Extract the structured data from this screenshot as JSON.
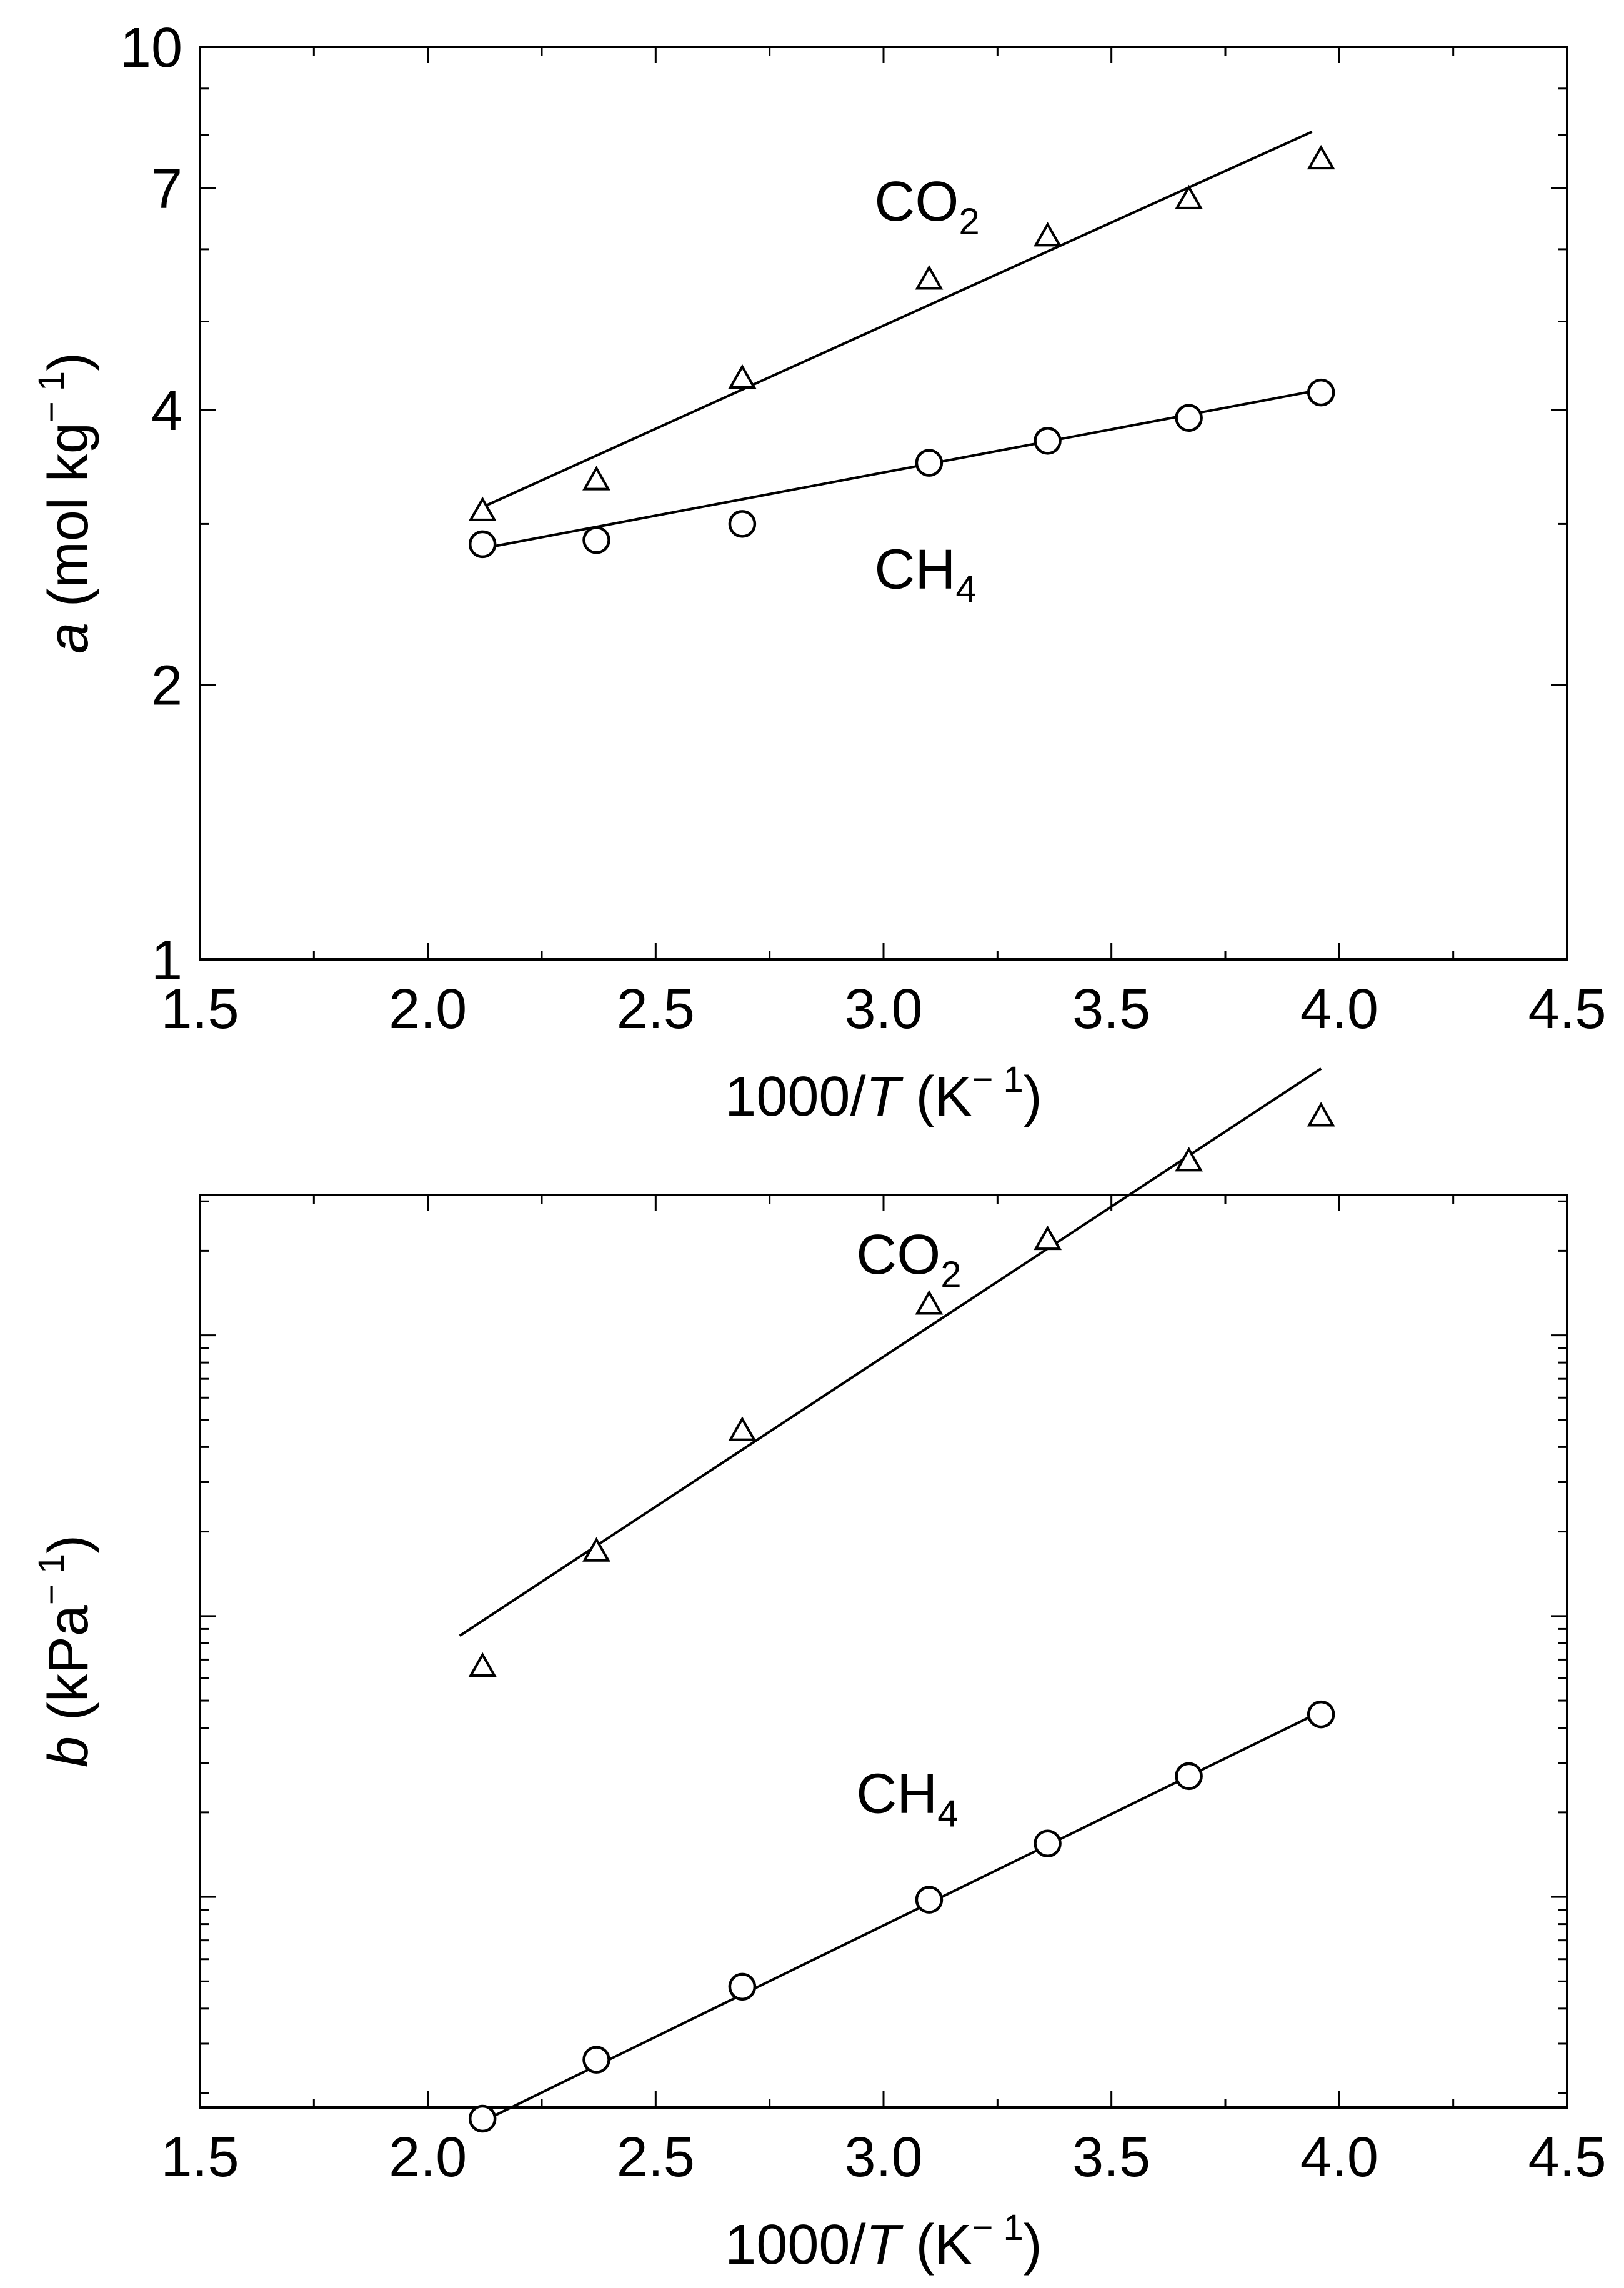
{
  "chart_data": [
    {
      "type": "scatter",
      "panel": "top",
      "yscale": "log",
      "xlabel_parts": {
        "prefix": "1000/",
        "var": "T",
        "unit_open": " (K",
        "unit_sup": "− 1",
        "unit_close": ")"
      },
      "ylabel_parts": {
        "var": "a",
        "unit_open": " (mol kg",
        "unit_sup": "− 1",
        "unit_close": ")"
      },
      "xlim": [
        1.5,
        4.5
      ],
      "ylim": [
        1,
        10
      ],
      "xticks": [
        1.5,
        2.0,
        2.5,
        3.0,
        3.5,
        4.0,
        4.5
      ],
      "xtick_labels": [
        "1.5",
        "2.0",
        "2.5",
        "3.0",
        "3.5",
        "4.0",
        "4.5"
      ],
      "yticks": [
        1,
        2,
        4,
        7,
        10
      ],
      "ytick_labels": [
        "1",
        "2",
        "4",
        "7",
        "10"
      ],
      "yminor": [
        3,
        5,
        6,
        8,
        9
      ],
      "series": [
        {
          "name": "CO2",
          "label_main": "CO",
          "label_sub": "2",
          "marker": "triangle",
          "x": [
            2.12,
            2.37,
            2.69,
            3.1,
            3.36,
            3.67,
            3.96
          ],
          "y": [
            3.1,
            3.35,
            4.33,
            5.56,
            6.2,
            6.81,
            7.53
          ],
          "fit": {
            "x": [
              2.12,
              3.94
            ],
            "y": [
              3.13,
              8.07
            ]
          }
        },
        {
          "name": "CH4",
          "label_main": "CH",
          "label_sub": "4",
          "marker": "circle",
          "x": [
            2.12,
            2.37,
            2.69,
            3.1,
            3.36,
            3.67,
            3.96
          ],
          "y": [
            2.85,
            2.88,
            3.0,
            3.5,
            3.7,
            3.92,
            4.18
          ],
          "fit": {
            "x": [
              2.12,
              3.96
            ],
            "y": [
              2.82,
              4.21
            ]
          }
        }
      ]
    },
    {
      "type": "scatter",
      "panel": "bottom",
      "yscale": "log",
      "xlabel_parts": {
        "prefix": "1000/",
        "var": "T",
        "unit_open": " (K",
        "unit_sup": "− 1",
        "unit_close": ")"
      },
      "ylabel_parts": {
        "var": "b",
        "unit_open": " (kPa",
        "unit_sup": "− 1",
        "unit_close": ")"
      },
      "xlim": [
        1.5,
        4.5
      ],
      "ylim_decades": [
        -3.75,
        -0.5
      ],
      "ytick_labels": [],
      "note": "y-axis is logarithmic with no printed tick labels; values in log10 units relative to unlabeled major ticks",
      "xticks": [
        1.5,
        2.0,
        2.5,
        3.0,
        3.5,
        4.0,
        4.5
      ],
      "xtick_labels": [
        "1.5",
        "2.0",
        "2.5",
        "3.0",
        "3.5",
        "4.0",
        "4.5"
      ],
      "series": [
        {
          "name": "CO2",
          "label_main": "CO",
          "label_sub": "2",
          "marker": "triangle",
          "log10_y": [
            -2.18,
            -1.77,
            -1.34,
            -0.89,
            -0.66,
            -0.38,
            -0.22
          ],
          "x": [
            2.12,
            2.37,
            2.69,
            3.1,
            3.36,
            3.67,
            3.96
          ],
          "fit": {
            "x": [
              2.07,
              3.96
            ],
            "log10_y": [
              -2.07,
              -0.05
            ]
          }
        },
        {
          "name": "CH4",
          "label_main": "CH",
          "label_sub": "4",
          "marker": "circle",
          "log10_y": [
            -3.79,
            -3.58,
            -3.32,
            -3.01,
            -2.81,
            -2.57,
            -2.35
          ],
          "x": [
            2.12,
            2.37,
            2.69,
            3.1,
            3.36,
            3.67,
            3.96
          ],
          "fit": {
            "x": [
              2.12,
              3.96
            ],
            "log10_y": [
              -3.8,
              -2.34
            ]
          }
        }
      ]
    }
  ]
}
